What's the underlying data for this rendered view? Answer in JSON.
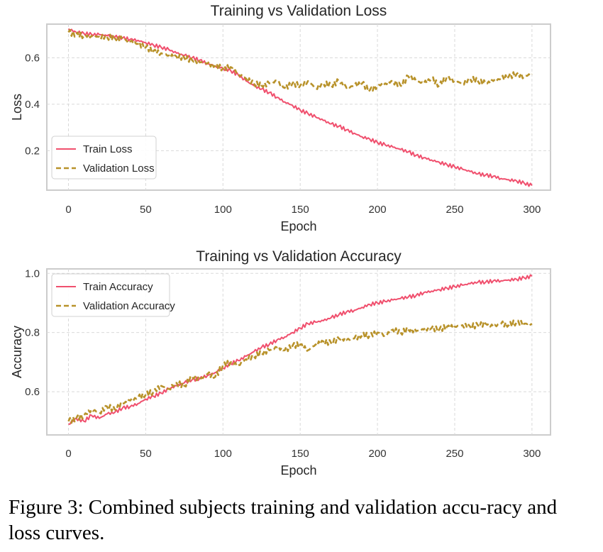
{
  "colors": {
    "train": "#f0506e",
    "validation": "#b8922a",
    "grid": "#d9d9d9",
    "frame": "#cccccc"
  },
  "caption": "Figure 3: Combined subjects training and validation accu-racy and loss curves.",
  "chart_data": [
    {
      "type": "line",
      "title": "Training vs Validation Loss",
      "xlabel": "Epoch",
      "ylabel": "Loss",
      "xlim": [
        -14,
        312
      ],
      "ylim": [
        0.03,
        0.745
      ],
      "xticks": [
        0,
        50,
        100,
        150,
        200,
        250,
        300
      ],
      "yticks": [
        0.2,
        0.4,
        0.6
      ],
      "ytick_labels": [
        "0.2",
        "0.4",
        "0.6"
      ],
      "grid": true,
      "legend": {
        "position": "lower-left",
        "entries": [
          "Train Loss",
          "Validation Loss"
        ]
      },
      "x": [
        0,
        5,
        10,
        15,
        20,
        25,
        30,
        35,
        40,
        45,
        50,
        55,
        60,
        65,
        70,
        75,
        80,
        85,
        90,
        95,
        100,
        105,
        110,
        115,
        120,
        125,
        130,
        135,
        140,
        145,
        150,
        155,
        160,
        165,
        170,
        175,
        180,
        185,
        190,
        195,
        200,
        205,
        210,
        215,
        220,
        225,
        230,
        235,
        240,
        245,
        250,
        255,
        260,
        265,
        270,
        275,
        280,
        285,
        290,
        295,
        300
      ],
      "series": [
        {
          "name": "Train Loss",
          "style": "solid",
          "values": [
            0.725,
            0.71,
            0.705,
            0.7,
            0.7,
            0.695,
            0.69,
            0.685,
            0.68,
            0.675,
            0.665,
            0.655,
            0.645,
            0.635,
            0.62,
            0.61,
            0.6,
            0.59,
            0.575,
            0.565,
            0.555,
            0.545,
            0.525,
            0.5,
            0.48,
            0.465,
            0.45,
            0.43,
            0.41,
            0.395,
            0.375,
            0.36,
            0.345,
            0.33,
            0.315,
            0.305,
            0.29,
            0.275,
            0.26,
            0.25,
            0.235,
            0.225,
            0.215,
            0.205,
            0.195,
            0.18,
            0.17,
            0.16,
            0.15,
            0.14,
            0.13,
            0.12,
            0.11,
            0.1,
            0.095,
            0.09,
            0.08,
            0.075,
            0.07,
            0.06,
            0.05
          ]
        },
        {
          "name": "Validation Loss",
          "style": "dashed",
          "values": [
            0.71,
            0.7,
            0.695,
            0.695,
            0.69,
            0.69,
            0.685,
            0.68,
            0.67,
            0.66,
            0.645,
            0.63,
            0.62,
            0.61,
            0.605,
            0.6,
            0.59,
            0.58,
            0.575,
            0.565,
            0.555,
            0.56,
            0.53,
            0.51,
            0.49,
            0.48,
            0.49,
            0.5,
            0.47,
            0.49,
            0.48,
            0.5,
            0.47,
            0.49,
            0.48,
            0.5,
            0.47,
            0.48,
            0.49,
            0.46,
            0.48,
            0.49,
            0.5,
            0.48,
            0.52,
            0.5,
            0.49,
            0.51,
            0.48,
            0.52,
            0.5,
            0.49,
            0.51,
            0.5,
            0.49,
            0.5,
            0.51,
            0.52,
            0.53,
            0.52,
            0.53
          ]
        }
      ]
    },
    {
      "type": "line",
      "title": "Training vs Validation Accuracy",
      "xlabel": "Epoch",
      "ylabel": "Accuracy",
      "xlim": [
        -14,
        312
      ],
      "ylim": [
        0.454,
        1.015
      ],
      "xticks": [
        0,
        50,
        100,
        150,
        200,
        250,
        300
      ],
      "yticks": [
        0.6,
        0.8,
        1.0
      ],
      "ytick_labels": [
        "0.6",
        "0.8",
        "1.0"
      ],
      "grid": true,
      "legend": {
        "position": "upper-left",
        "entries": [
          "Train Accuracy",
          "Validation Accuracy"
        ]
      },
      "x": [
        0,
        5,
        10,
        15,
        20,
        25,
        30,
        35,
        40,
        45,
        50,
        55,
        60,
        65,
        70,
        75,
        80,
        85,
        90,
        95,
        100,
        105,
        110,
        115,
        120,
        125,
        130,
        135,
        140,
        145,
        150,
        155,
        160,
        165,
        170,
        175,
        180,
        185,
        190,
        195,
        200,
        205,
        210,
        215,
        220,
        225,
        230,
        235,
        240,
        245,
        250,
        255,
        260,
        265,
        270,
        275,
        280,
        285,
        290,
        295,
        300
      ],
      "series": [
        {
          "name": "Train Accuracy",
          "style": "solid",
          "values": [
            0.49,
            0.51,
            0.5,
            0.52,
            0.51,
            0.525,
            0.53,
            0.545,
            0.55,
            0.56,
            0.575,
            0.585,
            0.595,
            0.61,
            0.62,
            0.63,
            0.64,
            0.645,
            0.655,
            0.665,
            0.68,
            0.695,
            0.705,
            0.72,
            0.735,
            0.75,
            0.76,
            0.775,
            0.785,
            0.8,
            0.815,
            0.83,
            0.835,
            0.84,
            0.85,
            0.86,
            0.87,
            0.875,
            0.885,
            0.895,
            0.9,
            0.905,
            0.91,
            0.915,
            0.92,
            0.925,
            0.935,
            0.94,
            0.945,
            0.95,
            0.955,
            0.96,
            0.965,
            0.97,
            0.97,
            0.975,
            0.975,
            0.978,
            0.98,
            0.985,
            0.99
          ]
        },
        {
          "name": "Validation Accuracy",
          "style": "dashed",
          "values": [
            0.5,
            0.51,
            0.52,
            0.54,
            0.53,
            0.55,
            0.54,
            0.56,
            0.57,
            0.58,
            0.59,
            0.6,
            0.62,
            0.61,
            0.63,
            0.62,
            0.65,
            0.64,
            0.66,
            0.65,
            0.69,
            0.7,
            0.69,
            0.71,
            0.72,
            0.73,
            0.74,
            0.75,
            0.74,
            0.755,
            0.76,
            0.74,
            0.76,
            0.77,
            0.765,
            0.78,
            0.775,
            0.78,
            0.79,
            0.79,
            0.8,
            0.79,
            0.81,
            0.8,
            0.81,
            0.805,
            0.81,
            0.815,
            0.81,
            0.82,
            0.82,
            0.825,
            0.82,
            0.825,
            0.83,
            0.82,
            0.83,
            0.825,
            0.835,
            0.83,
            0.83
          ]
        }
      ]
    }
  ]
}
